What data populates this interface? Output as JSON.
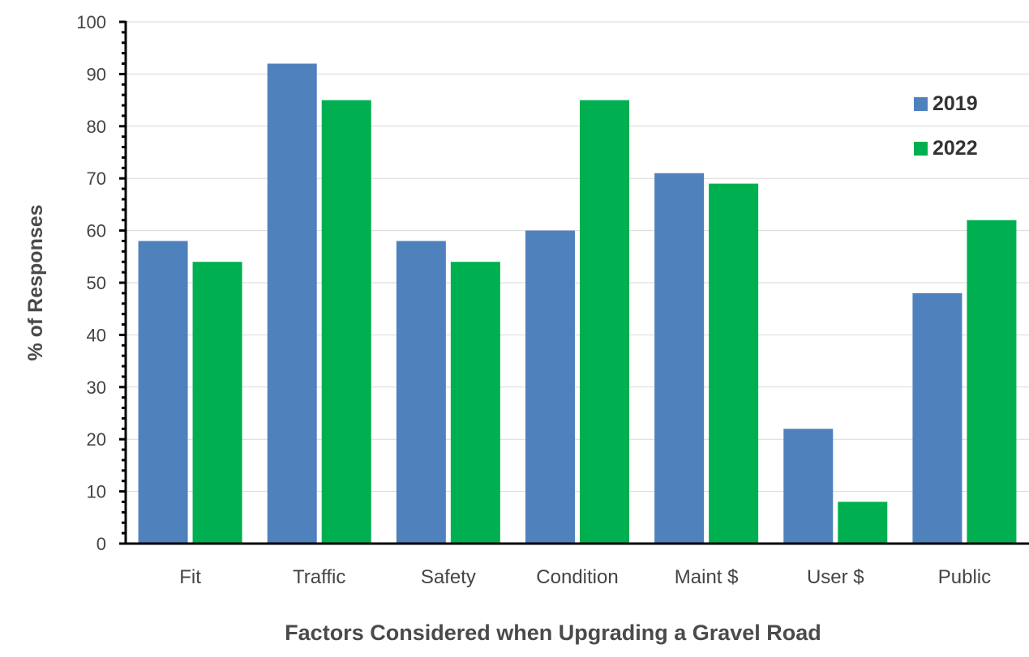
{
  "chart_data": {
    "type": "bar",
    "title": "",
    "xlabel": "Factors Considered when Upgrading a Gravel Road",
    "ylabel": "% of Responses",
    "ylim": [
      0,
      100
    ],
    "yticks": [
      0,
      10,
      20,
      30,
      40,
      50,
      60,
      70,
      80,
      90,
      100
    ],
    "grid": true,
    "legend_position": "top-right",
    "categories": [
      "Fit",
      "Traffic",
      "Safety",
      "Condition",
      "Maint $",
      "User $",
      "Public"
    ],
    "series": [
      {
        "name": "2019",
        "color": "#4f81bd",
        "values": [
          58,
          92,
          58,
          60,
          71,
          22,
          48
        ]
      },
      {
        "name": "2022",
        "color": "#00b050",
        "values": [
          54,
          85,
          54,
          85,
          69,
          8,
          62
        ]
      }
    ]
  }
}
